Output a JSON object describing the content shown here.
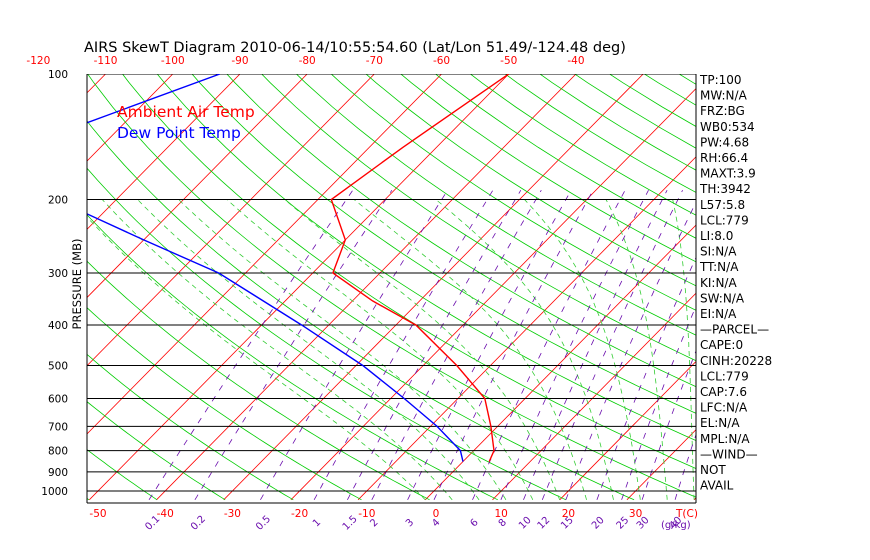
{
  "title": "AIRS SkewT Diagram 2010-06-14/10:55:54.60 (Lat/Lon 51.49/-124.48 deg)",
  "legend": [
    {
      "label": "Ambient Air Temp",
      "color": "#ff0000"
    },
    {
      "label": "Dew Point Temp",
      "color": "#0000ff"
    }
  ],
  "ylabel": "PRESSURE (MB)",
  "units_label": "T(C)",
  "mix_units_label": "(g/kg)",
  "pressure_ticks": [
    "100",
    "200",
    "300",
    "400",
    "500",
    "600",
    "700",
    "800",
    "900",
    "1000"
  ],
  "top_temp_ticks": [
    "-120",
    "-110",
    "-100",
    "-90",
    "-80",
    "-70",
    "-60",
    "-50",
    "-40"
  ],
  "bottom_temp_ticks": [
    "-50",
    "-40",
    "-30",
    "-20",
    "-10",
    "0",
    "10",
    "20",
    "30"
  ],
  "mixing_ratio_labels": [
    "0.1",
    "0.2",
    "0.5",
    "1",
    "1.5",
    "2",
    "3",
    "4",
    "6",
    "8",
    "10",
    "12",
    "15",
    "20",
    "25",
    "30",
    "40"
  ],
  "side_panel": [
    "TP:100",
    "MW:N/A",
    "FRZ:BG",
    "WB0:534",
    "PW:4.68",
    "RH:66.4",
    "MAXT:3.9",
    "TH:3942",
    "L57:5.8",
    "LCL:779",
    "LI:8.0",
    "SI:N/A",
    "TT:N/A",
    "KI:N/A",
    "SW:N/A",
    "EI:N/A",
    "—PARCEL—",
    "CAPE:0",
    "CINH:20228",
    "LCL:779",
    "CAP:7.6",
    "LFC:N/A",
    "EL:N/A",
    "MPL:N/A",
    "—WIND—",
    "NOT",
    "AVAIL"
  ],
  "colors": {
    "temperature": "#ff0000",
    "dewpoint": "#0000ff",
    "isotherm": "#ff0000",
    "dry_adiabat": "#00cc00",
    "moist_adiabat": "#33cc33",
    "mixing_ratio": "#6a0dad",
    "isobar": "#000000"
  },
  "chart_data": {
    "type": "line",
    "title": "AIRS SkewT Diagram 2010-06-14/10:55:54.60 (Lat/Lon 51.49/-124.48 deg)",
    "xlabel": "T(C)",
    "ylabel": "PRESSURE (MB)",
    "y_scale": "log",
    "ylim": [
      1050,
      100
    ],
    "xlim_bottom": [
      -53,
      39
    ],
    "skewed_temperature_axis": true,
    "grid": true,
    "legend_position": "top-left",
    "series": [
      {
        "name": "Ambient Air Temp",
        "points": [
          {
            "p": 100,
            "t": -50
          },
          {
            "p": 150,
            "t": -55
          },
          {
            "p": 200,
            "t": -58
          },
          {
            "p": 250,
            "t": -50
          },
          {
            "p": 300,
            "t": -47
          },
          {
            "p": 350,
            "t": -37
          },
          {
            "p": 400,
            "t": -27
          },
          {
            "p": 500,
            "t": -15
          },
          {
            "p": 600,
            "t": -6
          },
          {
            "p": 700,
            "t": -1
          },
          {
            "p": 800,
            "t": 3
          },
          {
            "p": 850,
            "t": 3.9
          }
        ]
      },
      {
        "name": "Dew Point Temp",
        "points": [
          {
            "p": 100,
            "t": -93
          },
          {
            "p": 150,
            "t": -112
          },
          {
            "p": 200,
            "t": -99
          },
          {
            "p": 250,
            "t": -80
          },
          {
            "p": 300,
            "t": -64
          },
          {
            "p": 400,
            "t": -44
          },
          {
            "p": 500,
            "t": -29
          },
          {
            "p": 600,
            "t": -18
          },
          {
            "p": 700,
            "t": -9
          },
          {
            "p": 800,
            "t": -2
          },
          {
            "p": 850,
            "t": 0
          }
        ]
      }
    ]
  }
}
